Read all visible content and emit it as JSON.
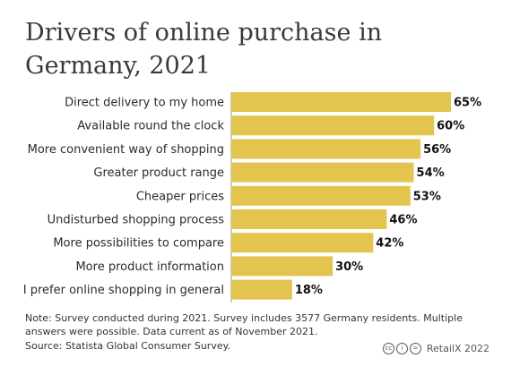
{
  "chart_data": {
    "type": "bar",
    "orientation": "horizontal",
    "title": "Drivers of online purchase in Germany, 2021",
    "categories": [
      "Direct delivery to my home",
      "Available round the clock",
      "More convenient way of shopping",
      "Greater product range",
      "Cheaper prices",
      "Undisturbed shopping process",
      "More possibilities to compare",
      "More product information",
      "I prefer online shopping in general"
    ],
    "values": [
      65,
      60,
      56,
      54,
      53,
      46,
      42,
      30,
      18
    ],
    "value_labels": [
      "65%",
      "60%",
      "56%",
      "54%",
      "53%",
      "46%",
      "42%",
      "30%",
      "18%"
    ],
    "xlim": [
      0,
      65
    ],
    "grid": false,
    "legend": "none",
    "bar_color": "#E2C44E"
  },
  "footer": {
    "note": "Note: Survey conducted during 2021. Survey includes 3577 Germany residents. Multiple answers were possible. Data current as of November 2021.",
    "source": "Source: Statista Global Consumer Survey.",
    "credit": "RetailX 2022"
  }
}
